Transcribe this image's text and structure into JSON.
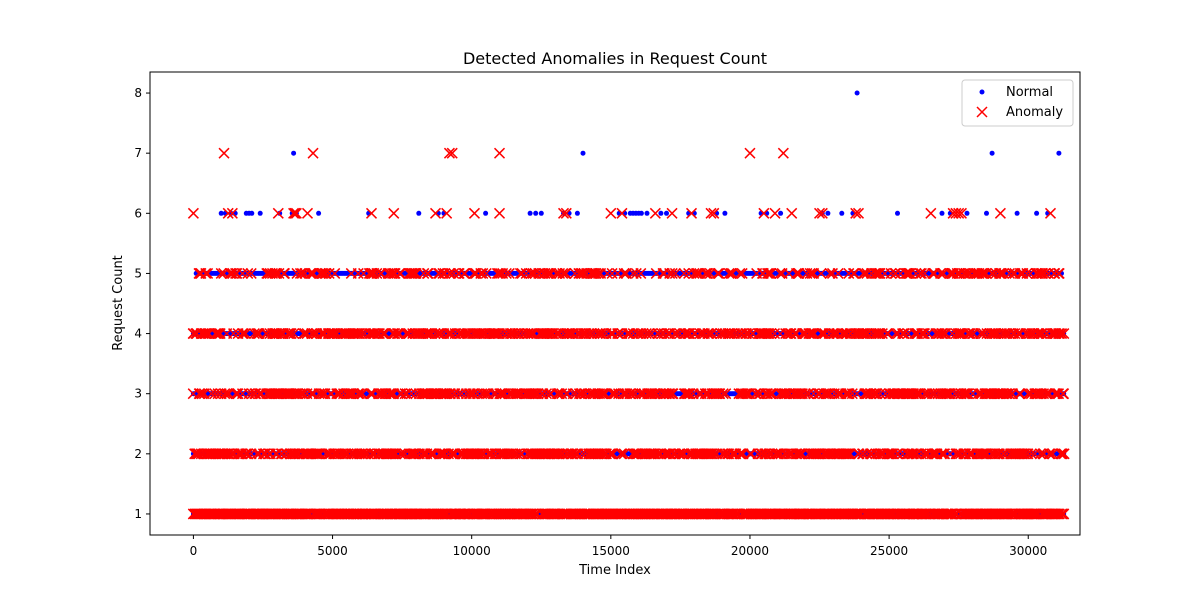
{
  "chart_data": {
    "type": "scatter",
    "title": "Detected Anomalies in Request Count",
    "xlabel": "Time Index",
    "ylabel": "Request Count",
    "xlim": [
      -1560,
      31860
    ],
    "ylim": [
      0.65,
      8.35
    ],
    "xticks": [
      0,
      5000,
      10000,
      15000,
      20000,
      25000,
      30000
    ],
    "yticks": [
      1,
      2,
      3,
      4,
      5,
      6,
      7,
      8
    ],
    "grid": false,
    "legend_position": "top-right",
    "x_max": 31300,
    "series": [
      {
        "name": "Normal",
        "marker": "dot",
        "color": "#0000ff",
        "dense_segments": [
          {
            "y": 1,
            "from": 0,
            "to": 31300
          },
          {
            "y": 2,
            "from": 0,
            "to": 31300
          },
          {
            "y": 3,
            "from": 0,
            "to": 31300
          },
          {
            "y": 4,
            "from": 0,
            "to": 31300
          },
          {
            "y": 5,
            "from": 100,
            "to": 31200
          }
        ],
        "points": [
          {
            "x": 1000,
            "y": 6
          },
          {
            "x": 1150,
            "y": 6
          },
          {
            "x": 1350,
            "y": 6
          },
          {
            "x": 1500,
            "y": 6
          },
          {
            "x": 1900,
            "y": 6
          },
          {
            "x": 2000,
            "y": 6
          },
          {
            "x": 2100,
            "y": 6
          },
          {
            "x": 2400,
            "y": 6
          },
          {
            "x": 3100,
            "y": 6
          },
          {
            "x": 3550,
            "y": 6
          },
          {
            "x": 3700,
            "y": 6
          },
          {
            "x": 4500,
            "y": 6
          },
          {
            "x": 6300,
            "y": 6
          },
          {
            "x": 8100,
            "y": 6
          },
          {
            "x": 8800,
            "y": 6
          },
          {
            "x": 9000,
            "y": 6
          },
          {
            "x": 10500,
            "y": 6
          },
          {
            "x": 12100,
            "y": 6
          },
          {
            "x": 12300,
            "y": 6
          },
          {
            "x": 12500,
            "y": 6
          },
          {
            "x": 13300,
            "y": 6
          },
          {
            "x": 13500,
            "y": 6
          },
          {
            "x": 13800,
            "y": 6
          },
          {
            "x": 15300,
            "y": 6
          },
          {
            "x": 15500,
            "y": 6
          },
          {
            "x": 15700,
            "y": 6
          },
          {
            "x": 15800,
            "y": 6
          },
          {
            "x": 15900,
            "y": 6
          },
          {
            "x": 16000,
            "y": 6
          },
          {
            "x": 16100,
            "y": 6
          },
          {
            "x": 16300,
            "y": 6
          },
          {
            "x": 16800,
            "y": 6
          },
          {
            "x": 17000,
            "y": 6
          },
          {
            "x": 17800,
            "y": 6
          },
          {
            "x": 18000,
            "y": 6
          },
          {
            "x": 18800,
            "y": 6
          },
          {
            "x": 19100,
            "y": 6
          },
          {
            "x": 20400,
            "y": 6
          },
          {
            "x": 20600,
            "y": 6
          },
          {
            "x": 21100,
            "y": 6
          },
          {
            "x": 22600,
            "y": 6
          },
          {
            "x": 22800,
            "y": 6
          },
          {
            "x": 23300,
            "y": 6
          },
          {
            "x": 23700,
            "y": 6
          },
          {
            "x": 25300,
            "y": 6
          },
          {
            "x": 26900,
            "y": 6
          },
          {
            "x": 27200,
            "y": 6
          },
          {
            "x": 27800,
            "y": 6
          },
          {
            "x": 28500,
            "y": 6
          },
          {
            "x": 29600,
            "y": 6
          },
          {
            "x": 30300,
            "y": 6
          },
          {
            "x": 30700,
            "y": 6
          },
          {
            "x": 3600,
            "y": 7
          },
          {
            "x": 14000,
            "y": 7
          },
          {
            "x": 28700,
            "y": 7
          },
          {
            "x": 31100,
            "y": 7
          },
          {
            "x": 23850,
            "y": 8
          }
        ]
      },
      {
        "name": "Anomaly",
        "marker": "x",
        "color": "#ff0000",
        "dense_segments": [
          {
            "y": 1,
            "from": 0,
            "to": 31300,
            "density": 0.9
          },
          {
            "y": 2,
            "from": 0,
            "to": 31300,
            "density": 0.6
          },
          {
            "y": 3,
            "from": 0,
            "to": 31300,
            "density": 0.5
          },
          {
            "y": 4,
            "from": 0,
            "to": 31300,
            "density": 0.5
          },
          {
            "y": 5,
            "from": 200,
            "to": 31200,
            "density": 0.3
          }
        ],
        "points": [
          {
            "x": 0,
            "y": 4
          },
          {
            "x": 0,
            "y": 6
          },
          {
            "x": 1250,
            "y": 6
          },
          {
            "x": 1400,
            "y": 6
          },
          {
            "x": 3050,
            "y": 6
          },
          {
            "x": 3600,
            "y": 6
          },
          {
            "x": 3700,
            "y": 6
          },
          {
            "x": 3650,
            "y": 6
          },
          {
            "x": 4100,
            "y": 6
          },
          {
            "x": 6400,
            "y": 6
          },
          {
            "x": 7200,
            "y": 6
          },
          {
            "x": 8700,
            "y": 6
          },
          {
            "x": 9100,
            "y": 6
          },
          {
            "x": 10100,
            "y": 6
          },
          {
            "x": 11000,
            "y": 6
          },
          {
            "x": 13300,
            "y": 6
          },
          {
            "x": 13400,
            "y": 6
          },
          {
            "x": 15000,
            "y": 6
          },
          {
            "x": 15400,
            "y": 6
          },
          {
            "x": 16600,
            "y": 6
          },
          {
            "x": 17200,
            "y": 6
          },
          {
            "x": 17900,
            "y": 6
          },
          {
            "x": 18600,
            "y": 6
          },
          {
            "x": 18700,
            "y": 6
          },
          {
            "x": 20500,
            "y": 6
          },
          {
            "x": 20900,
            "y": 6
          },
          {
            "x": 21500,
            "y": 6
          },
          {
            "x": 22500,
            "y": 6
          },
          {
            "x": 22600,
            "y": 6
          },
          {
            "x": 23800,
            "y": 6
          },
          {
            "x": 23900,
            "y": 6
          },
          {
            "x": 26500,
            "y": 6
          },
          {
            "x": 27300,
            "y": 6
          },
          {
            "x": 27400,
            "y": 6
          },
          {
            "x": 27500,
            "y": 6
          },
          {
            "x": 27600,
            "y": 6
          },
          {
            "x": 29000,
            "y": 6
          },
          {
            "x": 30800,
            "y": 6
          },
          {
            "x": 1100,
            "y": 7
          },
          {
            "x": 4300,
            "y": 7
          },
          {
            "x": 9200,
            "y": 7
          },
          {
            "x": 9300,
            "y": 7
          },
          {
            "x": 11000,
            "y": 7
          },
          {
            "x": 20000,
            "y": 7
          },
          {
            "x": 21200,
            "y": 7
          }
        ]
      }
    ]
  }
}
